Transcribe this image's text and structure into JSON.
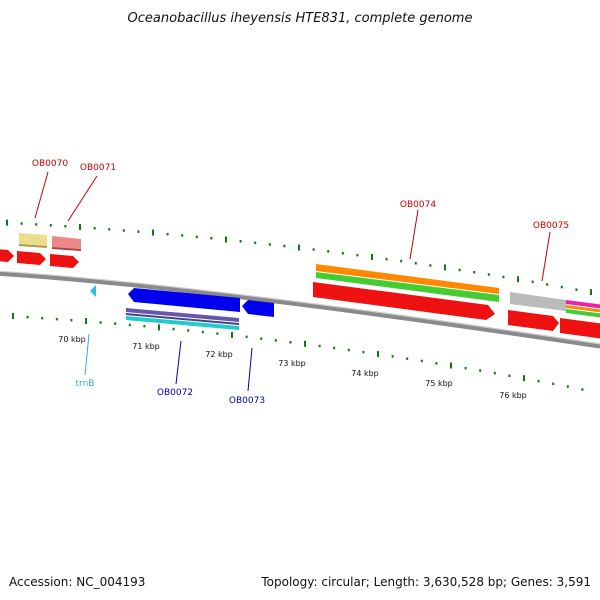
{
  "title": "Oceanobacillus iheyensis HTE831, complete genome",
  "footer": {
    "accession": "Accession: NC_004193",
    "summary": "Topology: circular; Length: 3,630,528 bp; Genes: 3,591"
  },
  "scale": {
    "unit": "kbp",
    "tick_labels": [
      "70 kbp",
      "71 kbp",
      "72 kbp",
      "73 kbp",
      "74 kbp",
      "75 kbp",
      "76 kbp"
    ]
  },
  "gene_labels": [
    {
      "id": "OB0070",
      "color": "#cc0000"
    },
    {
      "id": "OB0071",
      "color": "#cc0000"
    },
    {
      "id": "OB0074",
      "color": "#cc0000"
    },
    {
      "id": "OB0075",
      "color": "#cc0000"
    },
    {
      "id": "trnB",
      "color": "#33aadd"
    },
    {
      "id": "OB0072",
      "color": "#0000aa"
    },
    {
      "id": "OB0073",
      "color": "#0000aa"
    }
  ],
  "colors": {
    "forward_cds": "#ee1111",
    "reverse_cds": "#0000ee",
    "trna": "#33bbee",
    "backbone": "#8a8a8a",
    "ticks": "#117711",
    "match_orange": "#ff8800",
    "match_green": "#44cc33",
    "match_purple": "#6655aa",
    "match_cyan": "#22cccc",
    "match_yellow": "#eedd88",
    "match_pink": "#ee8888",
    "match_gray": "#bbbbbb",
    "match_magenta": "#ee22aa"
  }
}
